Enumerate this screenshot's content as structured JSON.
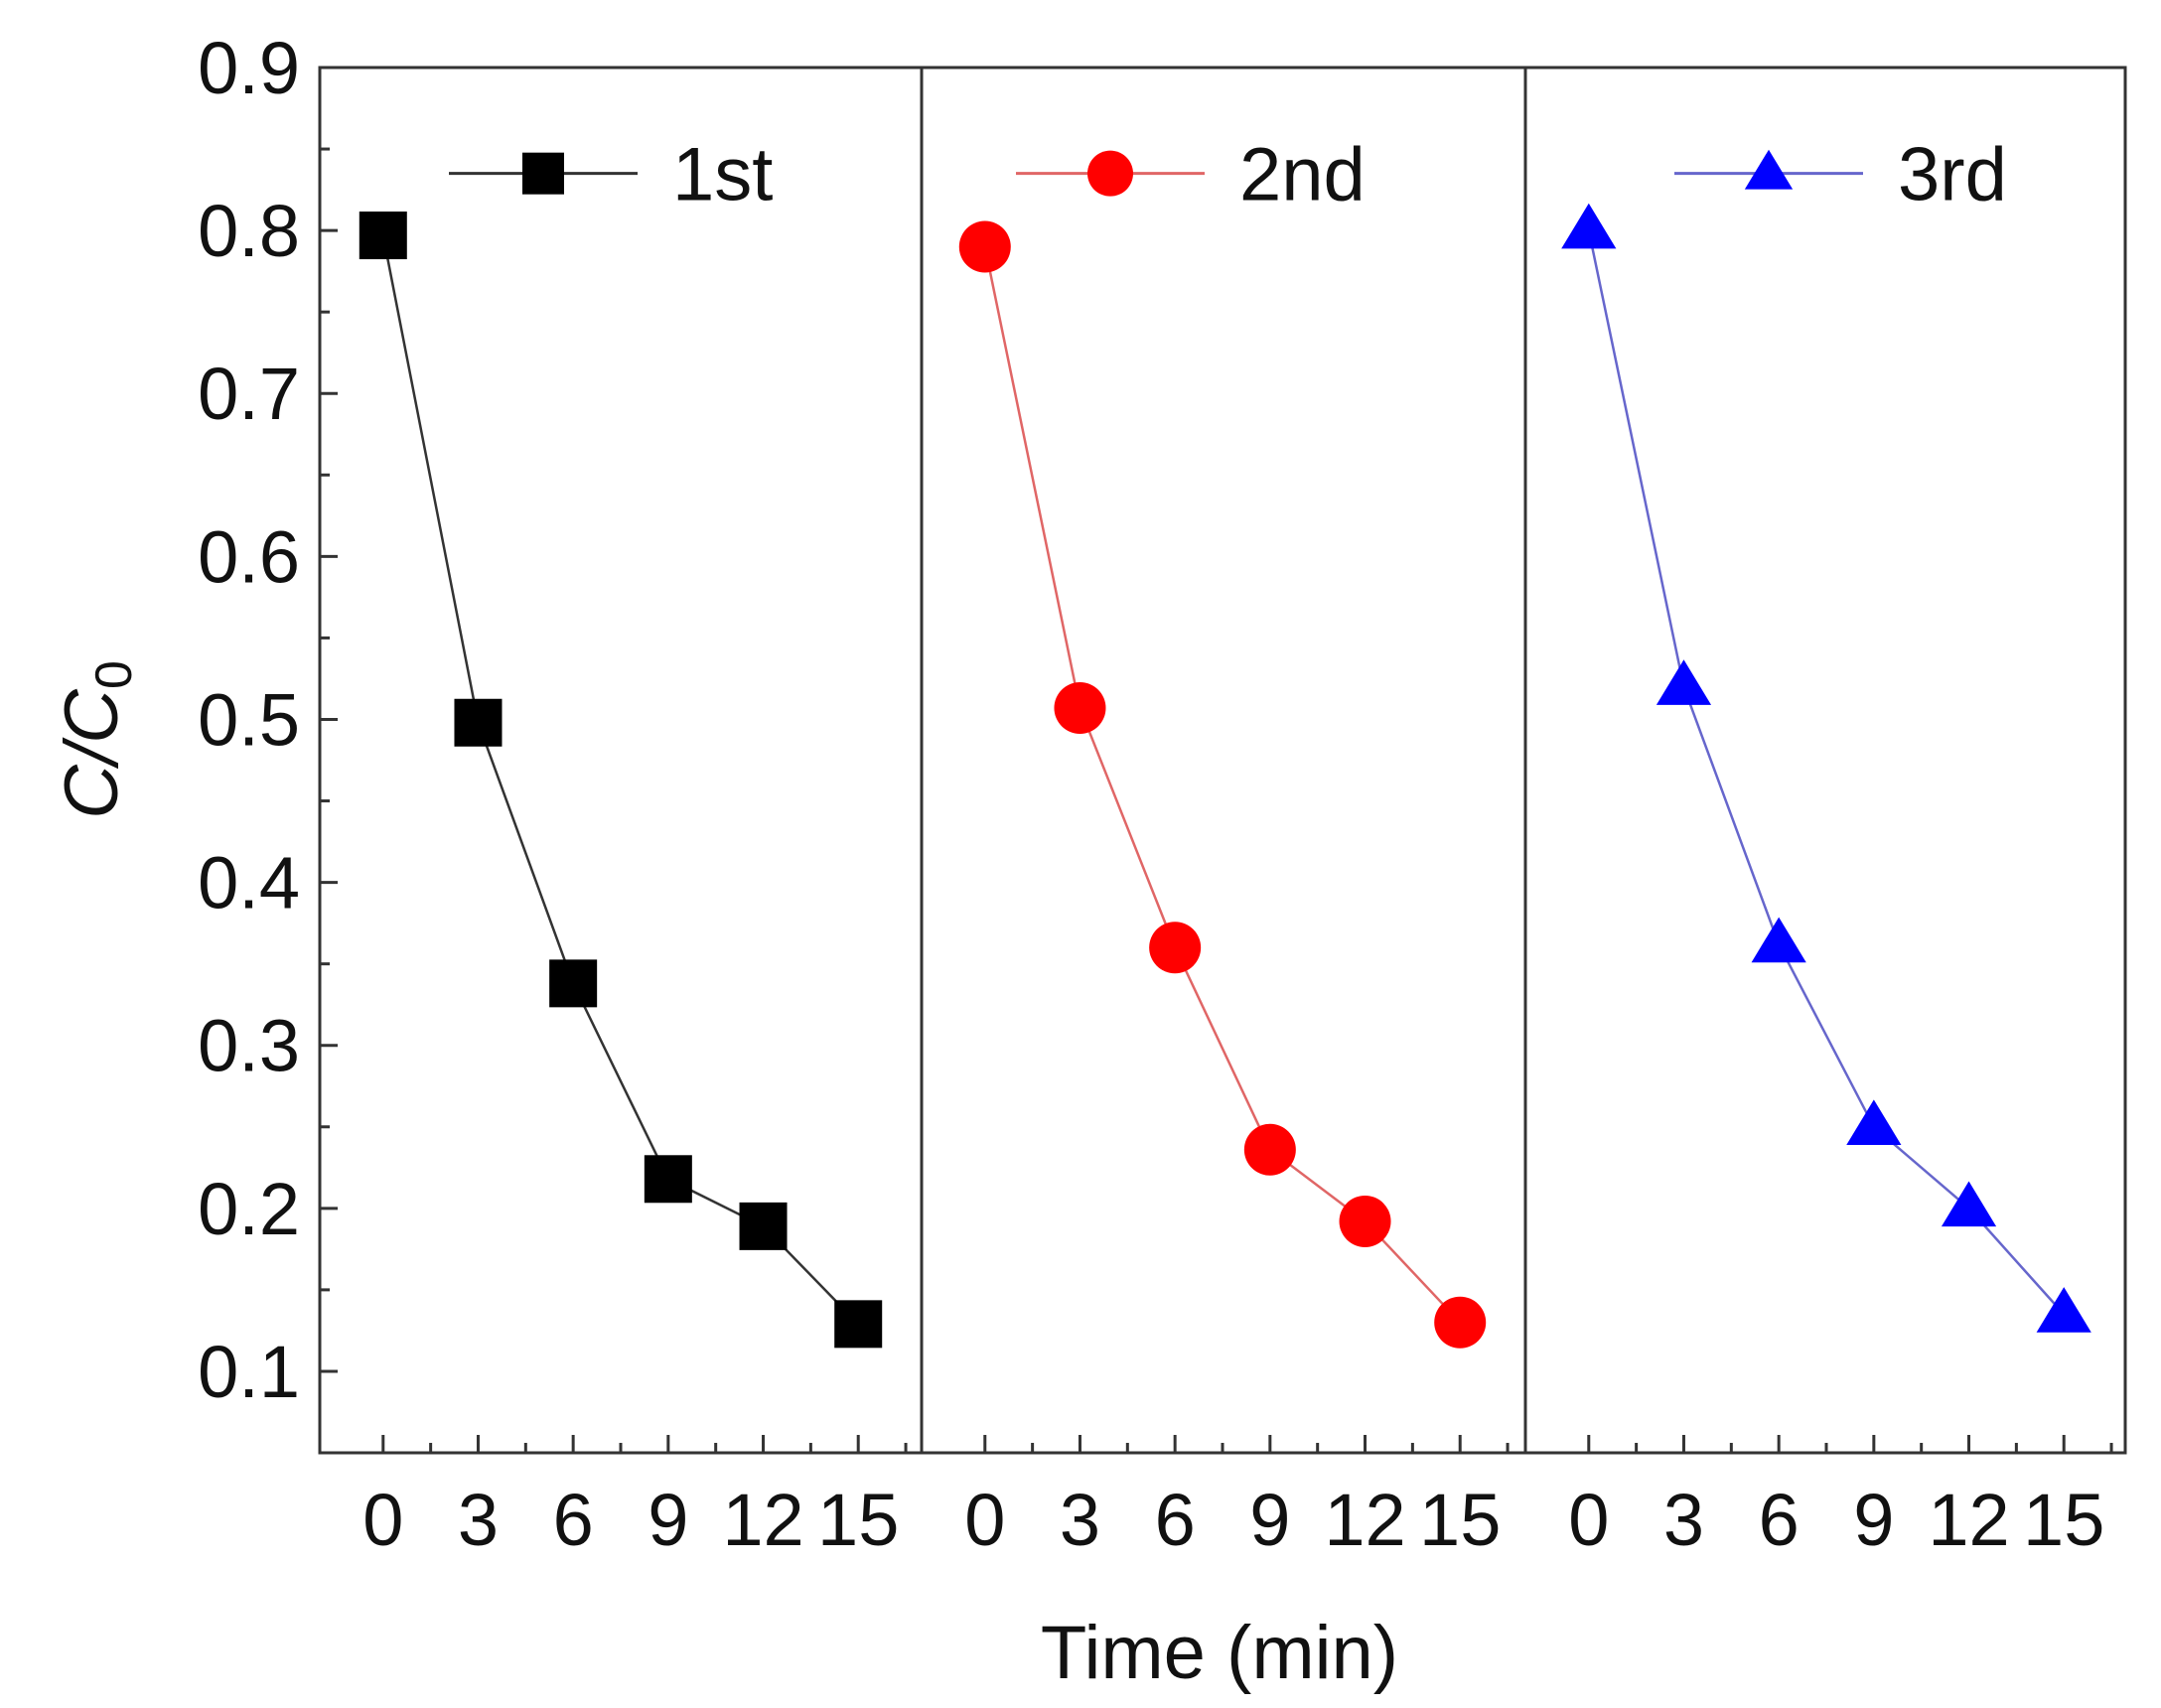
{
  "chart_data": {
    "type": "line",
    "ylabel": {
      "main": "C/C",
      "subscript": "0"
    },
    "xlabel": "Time (min)",
    "ylim": [
      0.05,
      0.9
    ],
    "yticks": [
      0.1,
      0.2,
      0.3,
      0.4,
      0.5,
      0.6,
      0.7,
      0.8,
      0.9
    ],
    "ytick_labels": [
      "0.1",
      "0.2",
      "0.3",
      "0.4",
      "0.5",
      "0.6",
      "0.7",
      "0.8",
      "0.9"
    ],
    "xlim": [
      -2,
      17
    ],
    "xticks": [
      0,
      3,
      6,
      9,
      12,
      15
    ],
    "xtick_labels": [
      "0",
      "3",
      "6",
      "9",
      "12",
      "15"
    ],
    "panels": [
      {
        "name": "1st",
        "marker": "square",
        "color": "#000000",
        "line_color": "#333333",
        "x": [
          0,
          3,
          6,
          9,
          12,
          15
        ],
        "y": [
          0.797,
          0.498,
          0.338,
          0.218,
          0.189,
          0.129
        ]
      },
      {
        "name": "2nd",
        "marker": "circle",
        "color": "#ff0000",
        "line_color": "#e06666",
        "x": [
          0,
          3,
          6,
          9,
          12,
          15
        ],
        "y": [
          0.79,
          0.507,
          0.36,
          0.236,
          0.192,
          0.13
        ]
      },
      {
        "name": "3rd",
        "marker": "triangle",
        "color": "#0000ff",
        "line_color": "#6666cc",
        "x": [
          0,
          3,
          6,
          9,
          12,
          15
        ],
        "y": [
          0.8,
          0.52,
          0.362,
          0.25,
          0.2,
          0.135
        ]
      }
    ]
  }
}
